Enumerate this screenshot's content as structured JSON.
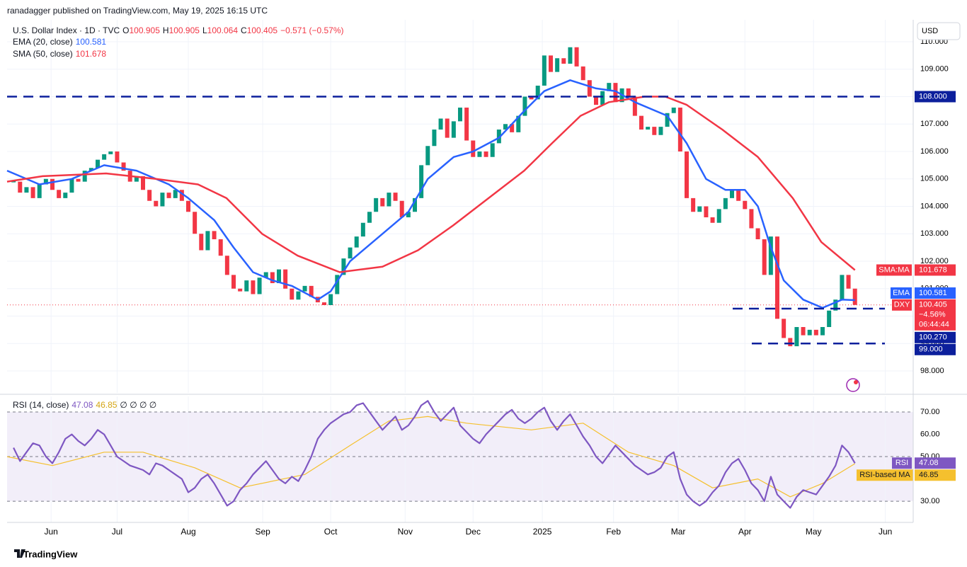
{
  "header": {
    "published": "ranadagger published on TradingView.com, May 19, 2025 16:15 UTC",
    "brand": "TradingView",
    "currency": "USD"
  },
  "chart_data": [
    {
      "type": "candlestick",
      "title": "U.S. Dollar Index · 1D · TVC",
      "ohlc": [
        {
          "label": "O",
          "value": 100.905
        },
        {
          "label": "H",
          "value": 100.905
        },
        {
          "label": "L",
          "value": 100.064
        },
        {
          "label": "C",
          "value": 100.405
        }
      ],
      "change": "−0.571 (−0.57%)",
      "xlim": [
        -1,
        139
      ],
      "xticks": [
        {
          "value": 5.8,
          "label": "Jun"
        },
        {
          "value": 16,
          "label": "Jul"
        },
        {
          "value": 27,
          "label": "Aug"
        },
        {
          "value": 38.5,
          "label": "Sep"
        },
        {
          "value": 49,
          "label": "Oct"
        },
        {
          "value": 60.5,
          "label": "Nov"
        },
        {
          "value": 71,
          "label": "Dec"
        },
        {
          "value": 81.7,
          "label": "2025"
        },
        {
          "value": 92.7,
          "label": "Feb"
        },
        {
          "value": 102.7,
          "label": "Mar"
        },
        {
          "value": 113,
          "label": "Apr"
        },
        {
          "value": 123.6,
          "label": "May"
        },
        {
          "value": 134.7,
          "label": "Jun"
        }
      ],
      "ylim": [
        97.2,
        110.8
      ],
      "yticks": [
        {
          "value": 98,
          "label": "98.000"
        },
        {
          "value": 99,
          "label": "99.000"
        },
        {
          "value": 100,
          "label": "100.000"
        },
        {
          "value": 101,
          "label": "101.000"
        },
        {
          "value": 102,
          "label": "102.000"
        },
        {
          "value": 103,
          "label": "103.000"
        },
        {
          "value": 104,
          "label": "104.000"
        },
        {
          "value": 105,
          "label": "105.000"
        },
        {
          "value": 106,
          "label": "106.000"
        },
        {
          "value": 107,
          "label": "107.000"
        },
        {
          "value": 108,
          "label": "108.000"
        },
        {
          "value": 109,
          "label": "109.000"
        },
        {
          "value": 110,
          "label": "110.000"
        }
      ],
      "grid": true,
      "series": [
        {
          "name": "DXY",
          "color_up": "#089981",
          "color_down": "#f23645",
          "values": [
            104.9,
            104.5,
            104.7,
            104.3,
            104.8,
            105.0,
            104.6,
            104.3,
            104.5,
            105.0,
            104.9,
            105.3,
            105.4,
            105.7,
            105.9,
            106.0,
            105.6,
            105.3,
            104.9,
            105.1,
            104.6,
            104.2,
            104.0,
            104.5,
            104.3,
            104.6,
            104.2,
            103.8,
            103.0,
            102.4,
            103.1,
            102.8,
            102.2,
            101.5,
            101.0,
            100.9,
            101.3,
            100.8,
            101.4,
            101.6,
            101.2,
            101.7,
            101.0,
            100.6,
            100.9,
            101.1,
            100.7,
            100.5,
            100.4,
            100.8,
            101.5,
            102.1,
            102.5,
            102.9,
            103.4,
            103.8,
            104.3,
            104.0,
            104.5,
            104.2,
            103.6,
            103.8,
            104.3,
            105.5,
            106.2,
            106.8,
            107.2,
            106.5,
            107.1,
            107.6,
            106.4,
            105.8,
            106.0,
            105.8,
            106.3,
            106.8,
            107.0,
            106.7,
            107.3,
            108.0,
            107.9,
            108.4,
            109.5,
            108.9,
            109.4,
            109.2,
            109.8,
            109.1,
            108.6,
            108.0,
            107.7,
            108.2,
            108.5,
            107.8,
            108.3,
            108.0,
            107.3,
            106.8,
            106.9,
            106.6,
            106.9,
            107.4,
            107.6,
            106.0,
            104.3,
            103.8,
            104.0,
            103.6,
            103.4,
            103.9,
            104.3,
            104.6,
            104.2,
            103.9,
            103.2,
            102.8,
            101.5,
            102.9,
            99.9,
            99.2,
            98.9,
            99.6,
            99.3,
            99.5,
            99.3,
            99.6,
            100.2,
            100.6,
            101.5,
            101.0,
            100.405
          ],
          "change_pct": "−4.56%",
          "countdown": "06:44:44"
        },
        {
          "name": "EMA (20, close)",
          "badge": "EMA",
          "color": "#2962ff",
          "legend_value": 100.581,
          "x": [
            -1,
            4,
            9,
            14,
            19,
            24,
            27,
            31,
            34,
            37,
            40,
            43,
            47,
            49,
            52,
            57,
            61,
            64,
            68,
            71,
            75,
            79,
            82,
            86,
            90,
            93,
            96,
            101,
            104,
            107,
            110,
            113,
            115,
            117,
            119,
            122,
            125,
            128,
            130
          ],
          "values": [
            105.3,
            104.8,
            105.0,
            105.5,
            105.3,
            104.8,
            104.3,
            103.5,
            102.5,
            101.6,
            101.3,
            101.1,
            100.6,
            100.9,
            102.0,
            103.0,
            103.8,
            105.0,
            105.8,
            106.0,
            106.5,
            107.5,
            108.2,
            108.6,
            108.3,
            108.2,
            107.8,
            107.3,
            106.3,
            105.0,
            104.6,
            104.6,
            104.0,
            102.5,
            101.3,
            100.6,
            100.3,
            100.6,
            100.581
          ]
        },
        {
          "name": "SMA (50, close)",
          "badge": "SMA:MA",
          "color": "#f23645",
          "legend_value": 101.678,
          "x": [
            -1,
            4.5,
            14.3,
            22,
            28.5,
            32.9,
            38.4,
            43.9,
            50.4,
            57,
            62.5,
            67.9,
            73.4,
            78.9,
            83.2,
            87.6,
            92,
            97.5,
            100.7,
            104,
            109.5,
            115,
            120.4,
            124.8,
            130
          ],
          "values": [
            104.9,
            105.1,
            105.2,
            105.0,
            104.8,
            104.3,
            103.0,
            102.2,
            101.6,
            101.8,
            102.4,
            103.3,
            104.3,
            105.3,
            106.3,
            107.3,
            107.8,
            108.0,
            108.0,
            107.7,
            106.8,
            105.8,
            104.3,
            102.7,
            101.678
          ]
        }
      ],
      "levels": [
        {
          "value": 108,
          "label": "108.000"
        },
        {
          "value": 100.27,
          "label": "100.270"
        },
        {
          "value": 99,
          "label": "99.000"
        }
      ]
    },
    {
      "type": "line",
      "title": "RSI (14, close)",
      "extra_legend": "∅ ∅ ∅ ∅",
      "ylim": [
        20.5,
        77
      ],
      "yticks": [
        {
          "value": 30,
          "label": "30.00"
        },
        {
          "value": 50,
          "label": "50.00"
        },
        {
          "value": 60,
          "label": "60.00"
        },
        {
          "value": 70,
          "label": "70.00"
        }
      ],
      "band": [
        30,
        70
      ],
      "dashed_levels": [
        70,
        50,
        30
      ],
      "series": [
        {
          "name": "RSI",
          "color": "#7e57c2",
          "legend_value": 47.08,
          "values": [
            54,
            48,
            52,
            56,
            55,
            50,
            47,
            52,
            58,
            60,
            57,
            55,
            58,
            62,
            60,
            55,
            50,
            48,
            46,
            45,
            44,
            42,
            47,
            46,
            44,
            42,
            40,
            34,
            36,
            40,
            42,
            38,
            33,
            28,
            30,
            35,
            38,
            42,
            45,
            48,
            44,
            40,
            38,
            41,
            39,
            44,
            50,
            58,
            62,
            65,
            67,
            69,
            70,
            73,
            74,
            70,
            66,
            62,
            65,
            68,
            62,
            64,
            68,
            73,
            75,
            70,
            66,
            69,
            72,
            64,
            61,
            58,
            56,
            60,
            63,
            66,
            69,
            71,
            67,
            65,
            67,
            70,
            72,
            66,
            62,
            66,
            69,
            64,
            59,
            55,
            50,
            47,
            51,
            55,
            52,
            49,
            46,
            44,
            42,
            43,
            45,
            50,
            52,
            40,
            33,
            30,
            28,
            30,
            34,
            37,
            43,
            47,
            49,
            44,
            38,
            35,
            30,
            41,
            33,
            30,
            27,
            32,
            35,
            34,
            33,
            37,
            41,
            46,
            55,
            52,
            47.08
          ]
        },
        {
          "name": "RSI-based MA",
          "color": "#f5c02e",
          "legend_value": 46.85,
          "x": [
            -1,
            6,
            14,
            20,
            28,
            35,
            45,
            52,
            58,
            64,
            70,
            80,
            88,
            95,
            102,
            108,
            115,
            120,
            125,
            130
          ],
          "values": [
            50,
            46,
            52,
            52,
            45,
            36,
            42,
            55,
            66,
            68,
            65,
            62,
            65,
            52,
            46,
            36,
            40,
            32,
            38,
            46.85
          ]
        }
      ]
    }
  ]
}
